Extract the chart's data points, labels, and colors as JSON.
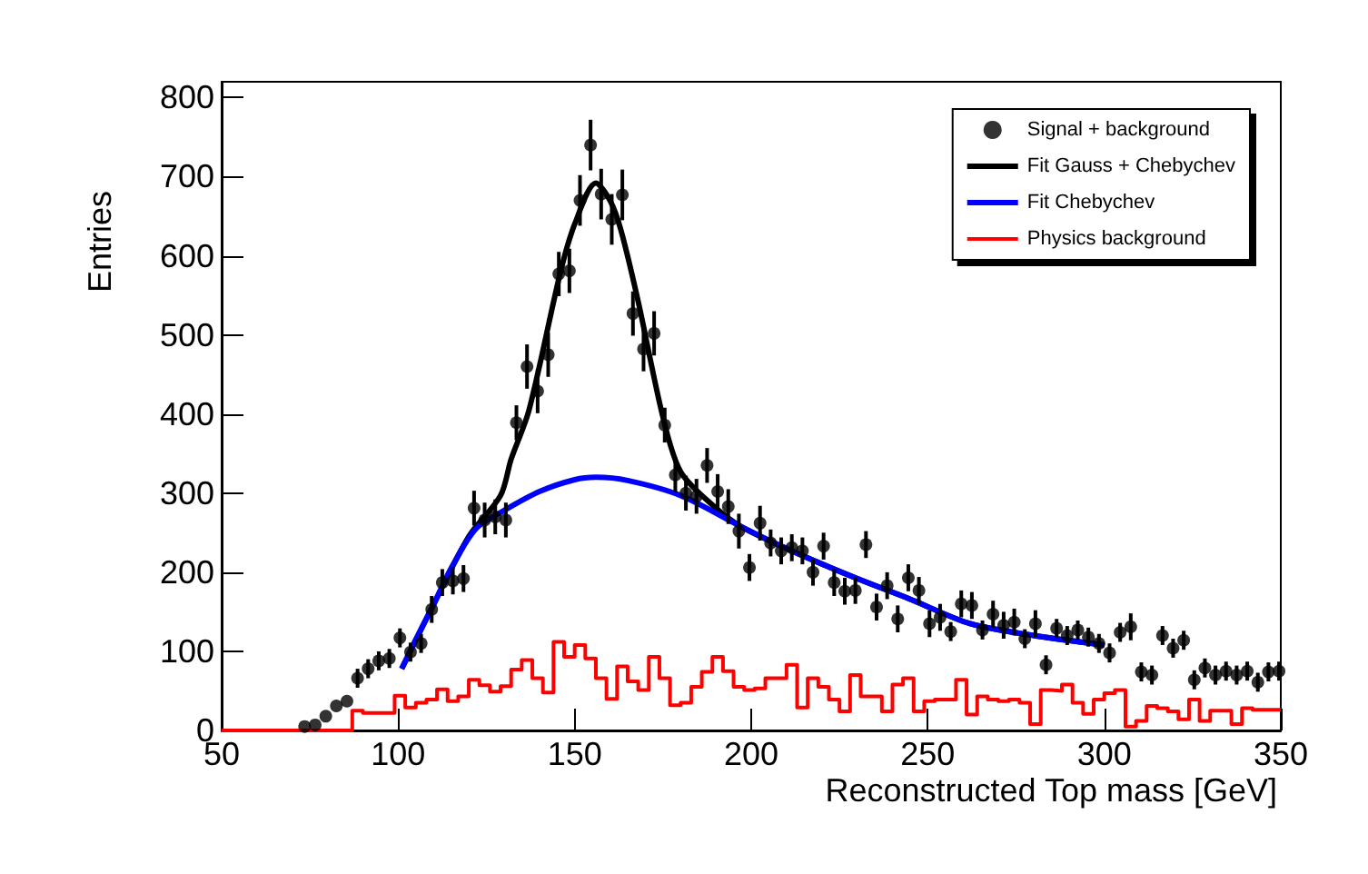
{
  "chart_data": {
    "type": "scatter",
    "xlabel": "Reconstructed Top mass [GeV]",
    "ylabel": "Entries",
    "xlim": [
      50,
      350
    ],
    "xticks": [
      50,
      100,
      150,
      200,
      250,
      300,
      350
    ],
    "ylim": [
      0,
      820
    ],
    "yticks": [
      0,
      100,
      200,
      300,
      400,
      500,
      600,
      700,
      800
    ],
    "legend": "top right",
    "series": [
      {
        "name": "Signal + background",
        "marker": "circle",
        "color": "#000000",
        "x": [
          73.5,
          76.5,
          79.5,
          82.5,
          85.5,
          88.5,
          91.5,
          94.5,
          97.5,
          100.5,
          103.5,
          106.5,
          109.5,
          112.5,
          115.5,
          118.5,
          121.5,
          124.5,
          127.5,
          130.5,
          133.5,
          136.5,
          139.5,
          142.5,
          145.5,
          148.5,
          151.5,
          154.5,
          157.5,
          160.5,
          163.5,
          166.5,
          169.5,
          172.5,
          175.5,
          178.5,
          181.5,
          184.5,
          187.5,
          190.5,
          193.5,
          196.5,
          199.5,
          202.5,
          205.5,
          208.5,
          211.5,
          214.5,
          217.5,
          220.5,
          223.5,
          226.5,
          229.5,
          232.5,
          235.5,
          238.5,
          241.5,
          244.5,
          247.5,
          250.5,
          253.5,
          256.5,
          259.5,
          262.5,
          265.5,
          268.5,
          271.5,
          274.5,
          277.5,
          280.5,
          283.5,
          286.5,
          289.5,
          292.5,
          295.5,
          298.5,
          301.5,
          304.5,
          307.5,
          310.5,
          313.5,
          316.5,
          319.5,
          322.5,
          325.5,
          328.5,
          331.5,
          334.5,
          337.5,
          340.5,
          343.5,
          346.5,
          349.5
        ],
        "values": [
          5,
          7,
          18,
          31,
          37,
          66,
          78,
          88,
          91,
          117,
          99,
          110,
          153,
          187,
          189,
          192,
          281,
          266,
          270,
          266,
          389,
          460,
          429,
          475,
          577,
          581,
          670,
          740,
          678,
          646,
          677,
          527,
          482,
          502,
          386,
          323,
          300,
          296,
          335,
          302,
          283,
          252,
          206,
          262,
          237,
          227,
          231,
          227,
          200,
          233,
          187,
          176,
          177,
          235,
          156,
          183,
          141,
          193,
          177,
          135,
          143,
          125,
          160,
          158,
          127,
          147,
          133,
          137,
          116,
          135,
          83,
          129,
          120,
          127,
          118,
          110,
          98,
          124,
          131,
          74,
          70,
          120,
          104,
          114,
          64,
          79,
          70,
          75,
          70,
          75,
          61,
          74,
          75
        ],
        "errors": [
          null,
          null,
          null,
          null,
          null,
          12,
          12,
          12,
          12,
          12,
          12,
          12,
          17,
          17,
          17,
          17,
          22,
          22,
          22,
          22,
          22,
          28,
          28,
          28,
          28,
          28,
          32,
          32,
          32,
          32,
          32,
          28,
          28,
          28,
          22,
          22,
          22,
          22,
          22,
          22,
          22,
          22,
          17,
          22,
          17,
          17,
          17,
          17,
          17,
          17,
          17,
          17,
          17,
          17,
          17,
          17,
          17,
          17,
          17,
          17,
          17,
          12,
          17,
          17,
          12,
          17,
          17,
          17,
          12,
          17,
          12,
          12,
          12,
          12,
          12,
          12,
          12,
          12,
          17,
          12,
          12,
          12,
          12,
          12,
          12,
          12,
          12,
          12,
          12,
          12,
          12,
          12,
          12
        ]
      },
      {
        "name": "Fit Gauss + Chebychev",
        "type": "line",
        "color": "#000000",
        "x": [
          101,
          110,
          120,
          129,
          132,
          137,
          146,
          150,
          156,
          160,
          163,
          168,
          175,
          180,
          189,
          197,
          212,
          230,
          245,
          262,
          280,
          300
        ],
        "values": [
          78,
          159,
          245,
          297,
          343,
          404,
          580,
          640,
          692,
          670,
          634,
          542,
          396,
          327,
          285,
          258,
          226,
          192,
          166,
          135,
          120,
          108
        ]
      },
      {
        "name": "Fit Chebychev",
        "type": "line",
        "color": "#0000ff",
        "x": [
          101,
          105,
          110,
          115,
          122,
          130,
          140,
          150,
          156,
          165,
          180,
          197,
          212,
          230,
          245,
          262,
          280,
          300
        ],
        "values": [
          78,
          115,
          159,
          205,
          255,
          278,
          302,
          317,
          320,
          316,
          297,
          258,
          226,
          192,
          166,
          135,
          120,
          108
        ]
      },
      {
        "name": "Physics background",
        "type": "histogram",
        "color": "#ff0000",
        "bins": [
          50,
          87,
          90,
          93,
          96,
          99,
          102,
          105,
          108,
          111,
          114,
          117,
          120,
          123,
          126,
          129,
          132,
          135,
          138,
          141,
          144,
          147,
          150,
          153,
          156,
          159,
          162,
          165,
          168,
          171,
          174,
          177,
          180,
          183,
          186,
          189,
          192,
          195,
          198,
          201,
          204,
          207,
          210,
          213,
          216,
          219,
          222,
          225,
          228,
          231,
          234,
          237,
          240,
          243,
          246,
          249,
          252,
          255,
          258,
          261,
          264,
          267,
          270,
          273,
          276,
          279,
          282,
          285,
          288,
          291,
          294,
          297,
          300,
          303,
          306,
          309,
          312,
          315,
          318,
          321,
          324,
          327,
          330,
          333,
          336,
          339,
          342,
          345,
          348,
          350
        ],
        "values": [
          0,
          25,
          22,
          22,
          22,
          44,
          29,
          35,
          39,
          52,
          37,
          43,
          64,
          57,
          49,
          56,
          77,
          89,
          66,
          48,
          112,
          93,
          108,
          91,
          66,
          40,
          81,
          62,
          51,
          93,
          66,
          32,
          35,
          55,
          74,
          93,
          75,
          55,
          51,
          53,
          66,
          66,
          83,
          29,
          66,
          55,
          39,
          24,
          70,
          43,
          43,
          24,
          58,
          66,
          24,
          37,
          39,
          39,
          64,
          20,
          43,
          39,
          37,
          39,
          35,
          8,
          51,
          50,
          58,
          35,
          21,
          39,
          47,
          51,
          5,
          12,
          31,
          28,
          24,
          14,
          39,
          12,
          25,
          25,
          8,
          28,
          26,
          26,
          26
        ]
      }
    ]
  }
}
